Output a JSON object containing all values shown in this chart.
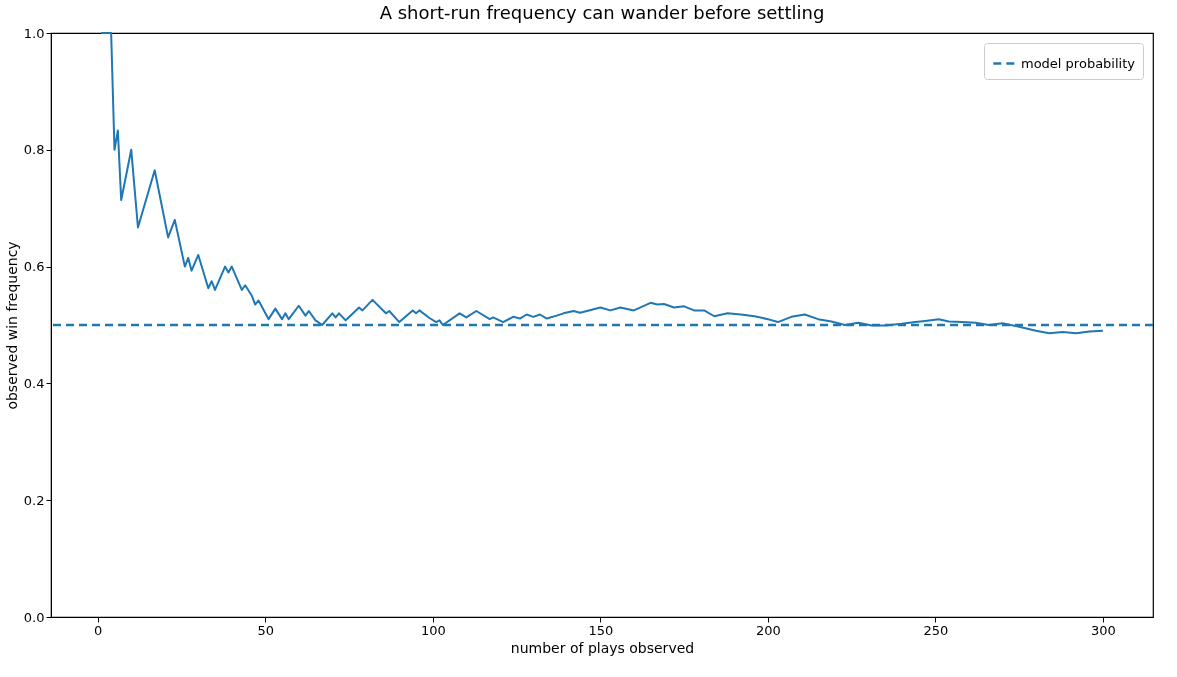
{
  "chart_data": {
    "type": "line",
    "title": "A short-run frequency can wander before settling",
    "xlabel": "number of plays observed",
    "ylabel": "observed win frequency",
    "x": [
      1,
      4,
      5,
      6,
      7,
      10,
      12,
      17,
      21,
      23,
      26,
      27,
      28,
      30,
      33,
      34,
      35,
      38,
      39,
      40,
      43,
      44,
      46,
      47,
      48,
      51,
      53,
      55,
      56,
      57,
      60,
      62,
      63,
      65,
      67,
      70,
      71,
      72,
      74,
      78,
      79,
      82,
      86,
      87,
      90,
      94,
      95,
      96,
      99,
      101,
      102,
      103,
      108,
      110,
      113,
      117,
      118,
      121,
      124,
      126,
      128,
      130,
      132,
      134,
      137,
      139,
      142,
      144,
      146,
      150,
      153,
      156,
      160,
      165,
      167,
      169,
      172,
      175,
      178,
      181,
      184,
      188,
      192,
      196,
      200,
      203,
      207,
      211,
      215,
      219,
      223,
      227,
      231,
      235,
      240,
      244,
      247,
      251,
      254,
      258,
      262,
      266,
      270,
      275,
      280,
      284,
      288,
      292,
      296,
      300
    ],
    "series": [
      {
        "color": "#1f77b4",
        "values": [
          1.0,
          1.0,
          0.8,
          0.833,
          0.714,
          0.8,
          0.667,
          0.765,
          0.65,
          0.68,
          0.6,
          0.615,
          0.593,
          0.62,
          0.563,
          0.575,
          0.56,
          0.6,
          0.59,
          0.6,
          0.56,
          0.568,
          0.55,
          0.535,
          0.542,
          0.51,
          0.528,
          0.51,
          0.52,
          0.51,
          0.533,
          0.516,
          0.524,
          0.508,
          0.5,
          0.52,
          0.513,
          0.52,
          0.508,
          0.53,
          0.525,
          0.543,
          0.52,
          0.524,
          0.505,
          0.525,
          0.52,
          0.525,
          0.512,
          0.505,
          0.508,
          0.5,
          0.52,
          0.513,
          0.524,
          0.51,
          0.513,
          0.505,
          0.514,
          0.511,
          0.518,
          0.514,
          0.518,
          0.511,
          0.516,
          0.52,
          0.524,
          0.521,
          0.524,
          0.53,
          0.525,
          0.53,
          0.525,
          0.538,
          0.535,
          0.536,
          0.53,
          0.532,
          0.525,
          0.525,
          0.515,
          0.52,
          0.518,
          0.515,
          0.51,
          0.505,
          0.514,
          0.518,
          0.51,
          0.506,
          0.5,
          0.504,
          0.499,
          0.499,
          0.502,
          0.505,
          0.507,
          0.51,
          0.506,
          0.505,
          0.504,
          0.5,
          0.503,
          0.497,
          0.49,
          0.486,
          0.488,
          0.486,
          0.489,
          0.49
        ]
      }
    ],
    "ref_lines": [
      {
        "axis": "y",
        "value": 0.5,
        "label": "model probability",
        "color": "#1f77b4",
        "line_style": "dashed"
      }
    ],
    "xlim": [
      -13.95,
      314.95
    ],
    "xticks": [
      0,
      50,
      100,
      150,
      200,
      250,
      300
    ],
    "ylim": [
      0,
      1
    ],
    "yticks": [
      {
        "value": 0,
        "label": "0.0"
      },
      {
        "value": 0.2,
        "label": "0.2"
      },
      {
        "value": 0.4,
        "label": "0.4"
      },
      {
        "value": 0.6,
        "label": "0.6"
      },
      {
        "value": 0.8,
        "label": "0.8"
      },
      {
        "value": 1,
        "label": "1.0"
      }
    ],
    "grid": false,
    "legend": "top right",
    "marker": "none",
    "line_style": "solid"
  }
}
